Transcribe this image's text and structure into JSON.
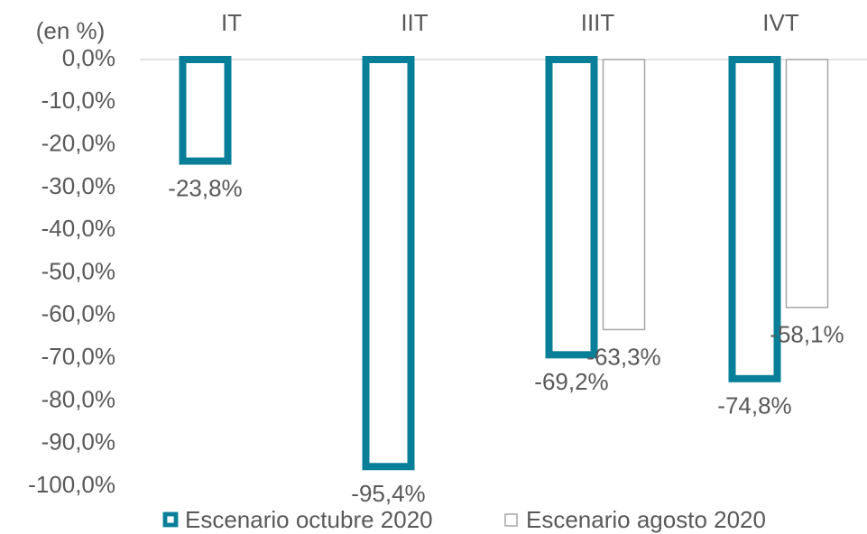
{
  "chart_data": {
    "type": "bar",
    "y_axis_label": "(en %)",
    "categories": [
      "IT",
      "IIT",
      "IIIT",
      "IVT"
    ],
    "series": [
      {
        "name": "Escenario octubre 2020",
        "color": "#077f98",
        "values": [
          -23.8,
          -95.4,
          -69.2,
          -74.8
        ],
        "value_labels": [
          "-23,8%",
          "-95,4%",
          "-69,2%",
          "-74,8%"
        ]
      },
      {
        "name": "Escenario agosto 2020",
        "color": "#a6a6a6",
        "values": [
          null,
          null,
          -63.3,
          -58.1
        ],
        "value_labels": [
          null,
          null,
          "-63,3%",
          "-58,1%"
        ]
      }
    ],
    "ylim": [
      -100,
      0
    ],
    "yticks": [
      {
        "value": 0,
        "label": "0,0%"
      },
      {
        "value": -10,
        "label": "-10,0%"
      },
      {
        "value": -20,
        "label": "-20,0%"
      },
      {
        "value": -30,
        "label": "-30,0%"
      },
      {
        "value": -40,
        "label": "-40,0%"
      },
      {
        "value": -50,
        "label": "-50,0%"
      },
      {
        "value": -60,
        "label": "-60,0%"
      },
      {
        "value": -70,
        "label": "-70,0%"
      },
      {
        "value": -80,
        "label": "-80,0%"
      },
      {
        "value": -90,
        "label": "-90,0%"
      },
      {
        "value": -100,
        "label": "-100,0%"
      }
    ],
    "grid": false,
    "legend": "bottom"
  }
}
